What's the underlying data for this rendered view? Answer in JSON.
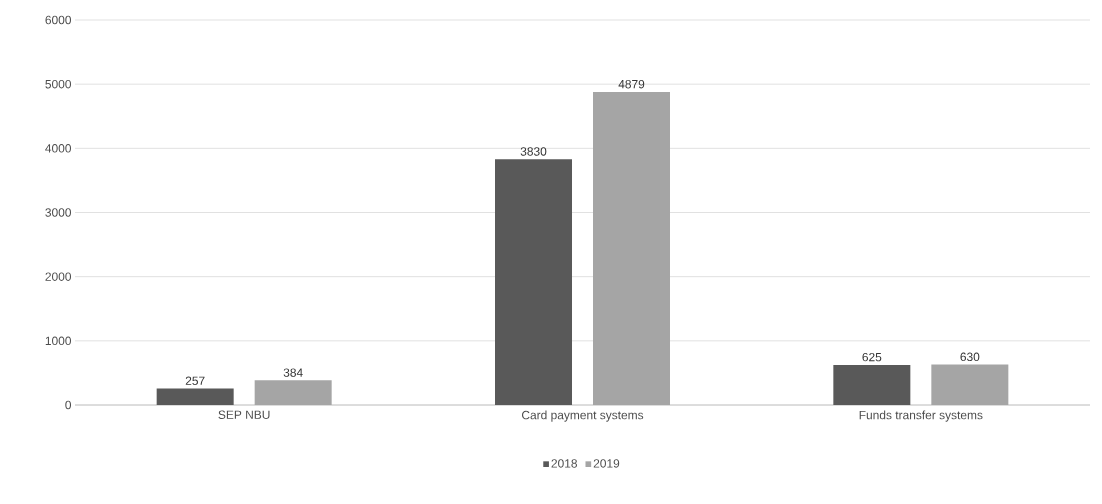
{
  "chart_data": {
    "type": "bar",
    "categories": [
      "SEP NBU",
      "Card payment systems",
      "Funds transfer systems"
    ],
    "series": [
      {
        "name": "2018",
        "color": "#595959",
        "values": [
          257,
          3830,
          625
        ]
      },
      {
        "name": "2019",
        "color": "#a5a5a5",
        "values": [
          384,
          4879,
          630
        ]
      }
    ],
    "ylim": [
      0,
      6000
    ],
    "yticks": [
      0,
      1000,
      2000,
      3000,
      4000,
      5000,
      6000
    ],
    "grid": "y",
    "legend": "bottom",
    "data_labels": true
  }
}
